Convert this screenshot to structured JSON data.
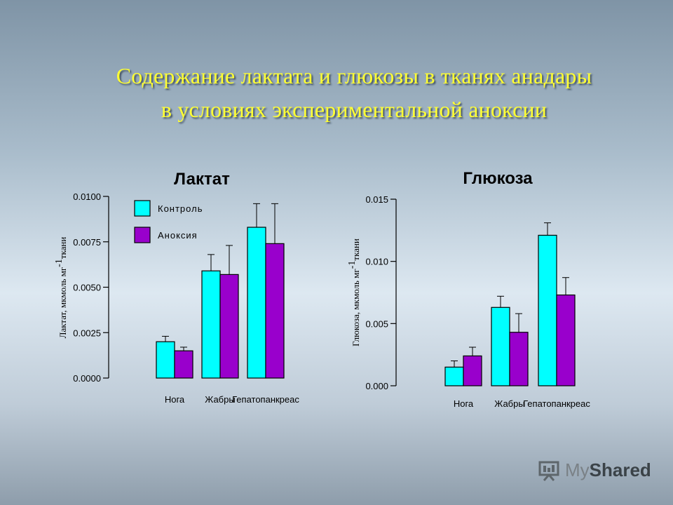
{
  "slide": {
    "title_line1": "Содержание лактата и глюкозы в тканях анадары",
    "title_line2": "в условиях экспериментальной аноксии",
    "watermark": {
      "my": "My",
      "share": "Shared"
    }
  },
  "colors": {
    "control": "#00ffff",
    "anoxia": "#9900cc",
    "title": "#ffff33"
  },
  "legend": [
    {
      "name": "Контроль",
      "color": "#00ffff"
    },
    {
      "name": "Аноксия",
      "color": "#9900cc"
    }
  ],
  "chart_data": [
    {
      "type": "bar",
      "title": "Лактат",
      "ylabel": "Лактат, мкмоль мг-1ткани",
      "ylabel_main": "Лактат, мкмоль мг",
      "ylabel_sup": "-1",
      "ylabel_tail": "ткани",
      "categories": [
        "Нога",
        "Жабры",
        "Гепатопанкреас"
      ],
      "yticks": [
        "0.0000",
        "0.0025",
        "0.0050",
        "0.0075",
        "0.0100"
      ],
      "ylim": [
        0,
        0.01
      ],
      "legend_position": "top-left",
      "series": [
        {
          "name": "Контроль",
          "values": [
            0.002,
            0.0059,
            0.0083
          ],
          "errors": [
            0.0003,
            0.0009,
            0.0013
          ]
        },
        {
          "name": "Аноксия",
          "values": [
            0.0015,
            0.0057,
            0.0074
          ],
          "errors": [
            0.0002,
            0.0016,
            0.0022
          ]
        }
      ]
    },
    {
      "type": "bar",
      "title": "Глюкоза",
      "ylabel": "Глюкоза, мкмоль мг-1ткани",
      "ylabel_main": "Глюкоза, мкмоль мг",
      "ylabel_sup": "-1",
      "ylabel_tail": "ткани",
      "categories": [
        "Нога",
        "Жабры",
        "Гепатопанкреас"
      ],
      "yticks": [
        "0.000",
        "0.005",
        "0.010",
        "0.015"
      ],
      "ylim": [
        0,
        0.015
      ],
      "legend_position": "none",
      "series": [
        {
          "name": "Контроль",
          "values": [
            0.0015,
            0.0063,
            0.0121
          ],
          "errors": [
            0.0005,
            0.0009,
            0.001
          ]
        },
        {
          "name": "Аноксия",
          "values": [
            0.0024,
            0.0043,
            0.0073
          ],
          "errors": [
            0.0007,
            0.0015,
            0.0014
          ]
        }
      ]
    }
  ]
}
